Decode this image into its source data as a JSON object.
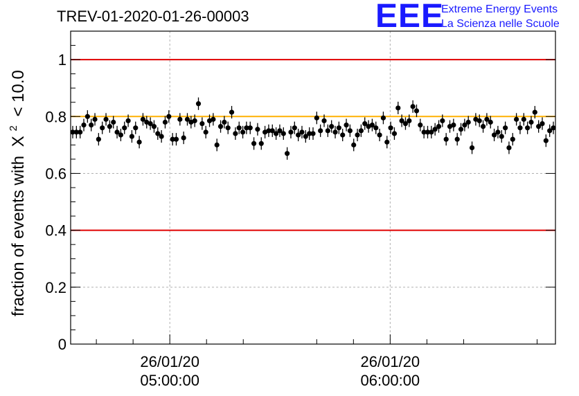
{
  "header": {
    "title": "TREV-01-2020-01-26-00003",
    "logo": {
      "mark": "EEE",
      "line1": "Extreme Energy Events",
      "line2": "La Scienza nelle Scuole"
    }
  },
  "chart_data": {
    "type": "scatter",
    "ylabel_prefix": "fraction of events with",
    "ylabel_symbol": "X",
    "ylabel_power": "2",
    "ylabel_suffix": "< 10.0",
    "ylim": [
      0,
      1.1
    ],
    "yticks": [
      "0",
      "0.2",
      "0.4",
      "0.6",
      "0.8",
      "1"
    ],
    "xlim": [
      "04:33",
      "06:45"
    ],
    "xtick_labels": [
      {
        "x": "05:00",
        "date": "26/01/20",
        "time": "05:00:00"
      },
      {
        "x": "06:00",
        "date": "26/01/20",
        "time": "06:00:00"
      }
    ],
    "grid": true,
    "reference_lines": [
      {
        "y": 1.0,
        "color": "#e00000"
      },
      {
        "y": 0.8,
        "color": "#ffb000"
      },
      {
        "y": 0.4,
        "color": "#e00000"
      }
    ],
    "marker_color": "#000000",
    "series": [
      {
        "y": [
          0.745,
          0.745,
          0.745,
          0.77,
          0.8,
          0.77,
          0.79,
          0.72,
          0.76,
          0.79,
          0.765,
          0.78,
          0.745,
          0.735,
          0.76,
          0.785,
          0.73,
          0.76,
          0.71,
          0.79,
          0.78,
          0.775,
          0.765,
          0.74,
          0.73,
          0.78,
          0.8,
          0.72,
          0.72,
          0.79,
          0.725,
          0.79,
          0.78,
          0.785,
          0.845,
          0.775,
          0.745,
          0.785,
          0.79,
          0.7,
          0.765,
          0.78,
          0.76,
          0.815,
          0.74,
          0.76,
          0.745,
          0.76,
          0.76,
          0.705,
          0.755,
          0.705,
          0.745,
          0.75,
          0.75,
          0.74,
          0.75,
          0.74,
          0.67,
          0.745,
          0.76,
          0.735,
          0.745,
          0.73,
          0.74,
          0.74,
          0.795,
          0.75,
          0.785,
          0.75,
          0.765,
          0.745,
          0.76,
          0.735,
          0.77,
          0.75,
          0.7,
          0.735,
          0.75,
          0.775,
          0.765,
          0.77,
          0.76,
          0.735,
          0.795,
          0.71,
          0.76,
          0.74,
          0.83,
          0.785,
          0.775,
          0.785,
          0.835,
          0.82,
          0.77,
          0.745,
          0.745,
          0.745,
          0.755,
          0.765,
          0.785,
          0.72,
          0.765,
          0.77,
          0.72,
          0.755,
          0.77,
          0.78,
          0.69,
          0.79,
          0.785,
          0.765,
          0.79,
          0.78,
          0.735,
          0.745,
          0.73,
          0.76,
          0.69,
          0.72,
          0.79,
          0.76,
          0.79,
          0.76,
          0.78,
          0.815,
          0.765,
          0.775,
          0.715,
          0.75,
          0.76
        ],
        "err": 0.022
      }
    ]
  }
}
